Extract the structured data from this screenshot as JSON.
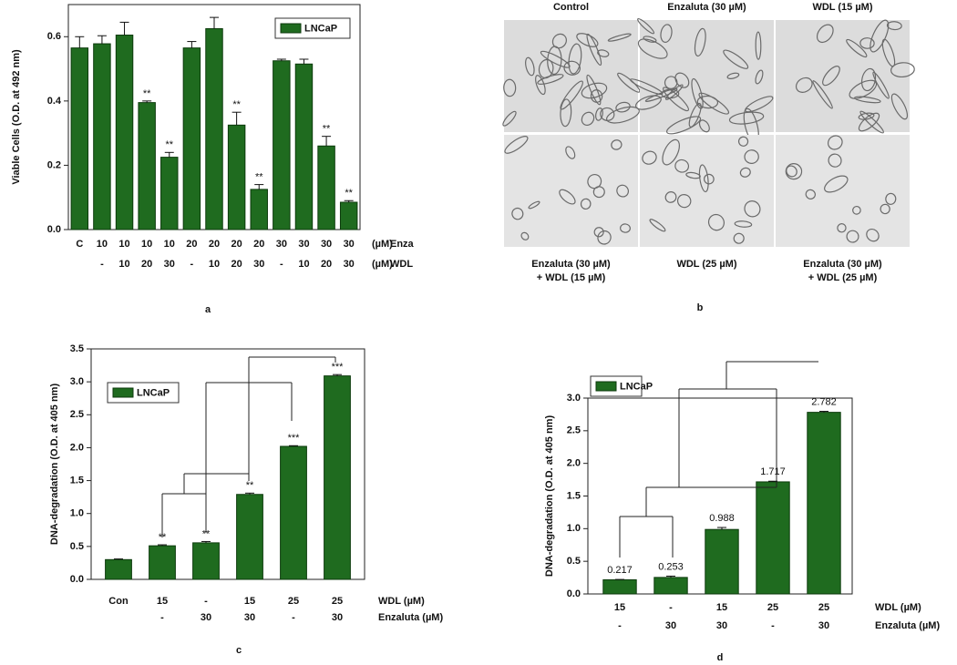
{
  "chart_data": [
    {
      "type": "bar",
      "panel_label": "a",
      "y_label": "Viable Cells (O.D. at 492 nm)",
      "ylim": [
        0,
        0.7
      ],
      "yticks": [
        {
          "value": 0,
          "label": "0.0"
        },
        0.2,
        0.4,
        0.6
      ],
      "series": [
        {
          "name": "LNCaP",
          "color": "#1f6b1f",
          "values": [
            0.565,
            0.578,
            0.605,
            0.395,
            0.225,
            0.565,
            0.625,
            0.325,
            0.125,
            0.525,
            0.515,
            0.26,
            0.085
          ],
          "errors": [
            0.035,
            0.025,
            0.04,
            0.005,
            0.015,
            0.02,
            0.035,
            0.04,
            0.015,
            0.005,
            0.015,
            0.03,
            0.005
          ]
        }
      ],
      "annotations": [
        null,
        null,
        null,
        "**",
        "**",
        null,
        null,
        "**",
        "**",
        null,
        null,
        "**",
        "**"
      ],
      "category_rows": [
        {
          "unit": "(µM)",
          "label": "Enza",
          "values": [
            "C",
            "10",
            "10",
            "10",
            "10",
            "20",
            "20",
            "20",
            "20",
            "30",
            "30",
            "30",
            "30"
          ]
        },
        {
          "unit": "(µM)",
          "label": "WDL",
          "values": [
            null,
            "-",
            "10",
            "20",
            "30",
            "-",
            "10",
            "20",
            "30",
            "-",
            "10",
            "20",
            "30"
          ]
        }
      ],
      "legend": "upper right"
    },
    {
      "type": "bar",
      "panel_label": "c",
      "y_label": "DNA-degradation (O.D. at 405 nm)",
      "ylim": [
        0,
        3.5
      ],
      "yticks": [
        {
          "value": 0,
          "label": "0.0"
        },
        0.5,
        {
          "value": 1,
          "label": "1.0"
        },
        1.5,
        {
          "value": 2,
          "label": "2.0"
        },
        2.5,
        {
          "value": 3,
          "label": "3.0"
        },
        3.5
      ],
      "series": [
        {
          "name": "LNCaP",
          "color": "#1f6b1f",
          "values": [
            0.3,
            0.51,
            0.555,
            1.29,
            2.02,
            3.09
          ],
          "errors": [
            0.01,
            0.015,
            0.02,
            0.02,
            0.01,
            0.02
          ]
        }
      ],
      "annotations": [
        null,
        "**",
        "**",
        "**",
        "***",
        "***"
      ],
      "category_rows": [
        {
          "label": "WDL (µM)",
          "values": [
            "Con",
            "15",
            "-",
            "15",
            "25",
            "25"
          ]
        },
        {
          "label": "Enzaluta (µM)",
          "values": [
            null,
            "-",
            "30",
            "30",
            "-",
            "30"
          ]
        }
      ],
      "legend": "upper left"
    },
    {
      "type": "bar",
      "panel_label": "d",
      "y_label": "DNA-degradation (O.D. at 405 nm)",
      "ylim": [
        0,
        3.0
      ],
      "yticks": [
        {
          "value": 0,
          "label": "0.0"
        },
        0.5,
        {
          "value": 1,
          "label": "1.0"
        },
        1.5,
        {
          "value": 2,
          "label": "2.0"
        },
        2.5,
        {
          "value": 3,
          "label": "3.0"
        }
      ],
      "series": [
        {
          "name": "LNCaP",
          "color": "#1f6b1f",
          "values": [
            0.217,
            0.253,
            0.988,
            1.717,
            2.782
          ],
          "errors": [
            0.005,
            0.02,
            0.03,
            0.01,
            0.015
          ]
        }
      ],
      "show_values": true,
      "category_rows": [
        {
          "label": "WDL (µM)",
          "values": [
            "15",
            "-",
            "15",
            "25",
            "25"
          ]
        },
        {
          "label": "Enzaluta (µM)",
          "values": [
            "-",
            "30",
            "30",
            "-",
            "30"
          ]
        }
      ],
      "legend": "upper left"
    }
  ],
  "panel_b": {
    "label": "b",
    "images": [
      {
        "caption": [
          "Control"
        ]
      },
      {
        "caption": [
          "Enzaluta (30 µM)"
        ]
      },
      {
        "caption": [
          "WDL (15 µM)"
        ]
      },
      {
        "caption": [
          "Enzaluta (30 µM)",
          "+ WDL (15 µM)"
        ]
      },
      {
        "caption": [
          "WDL (25 µM)"
        ]
      },
      {
        "caption": [
          "Enzaluta (30 µM)",
          "+ WDL (25 µM)"
        ]
      }
    ]
  }
}
